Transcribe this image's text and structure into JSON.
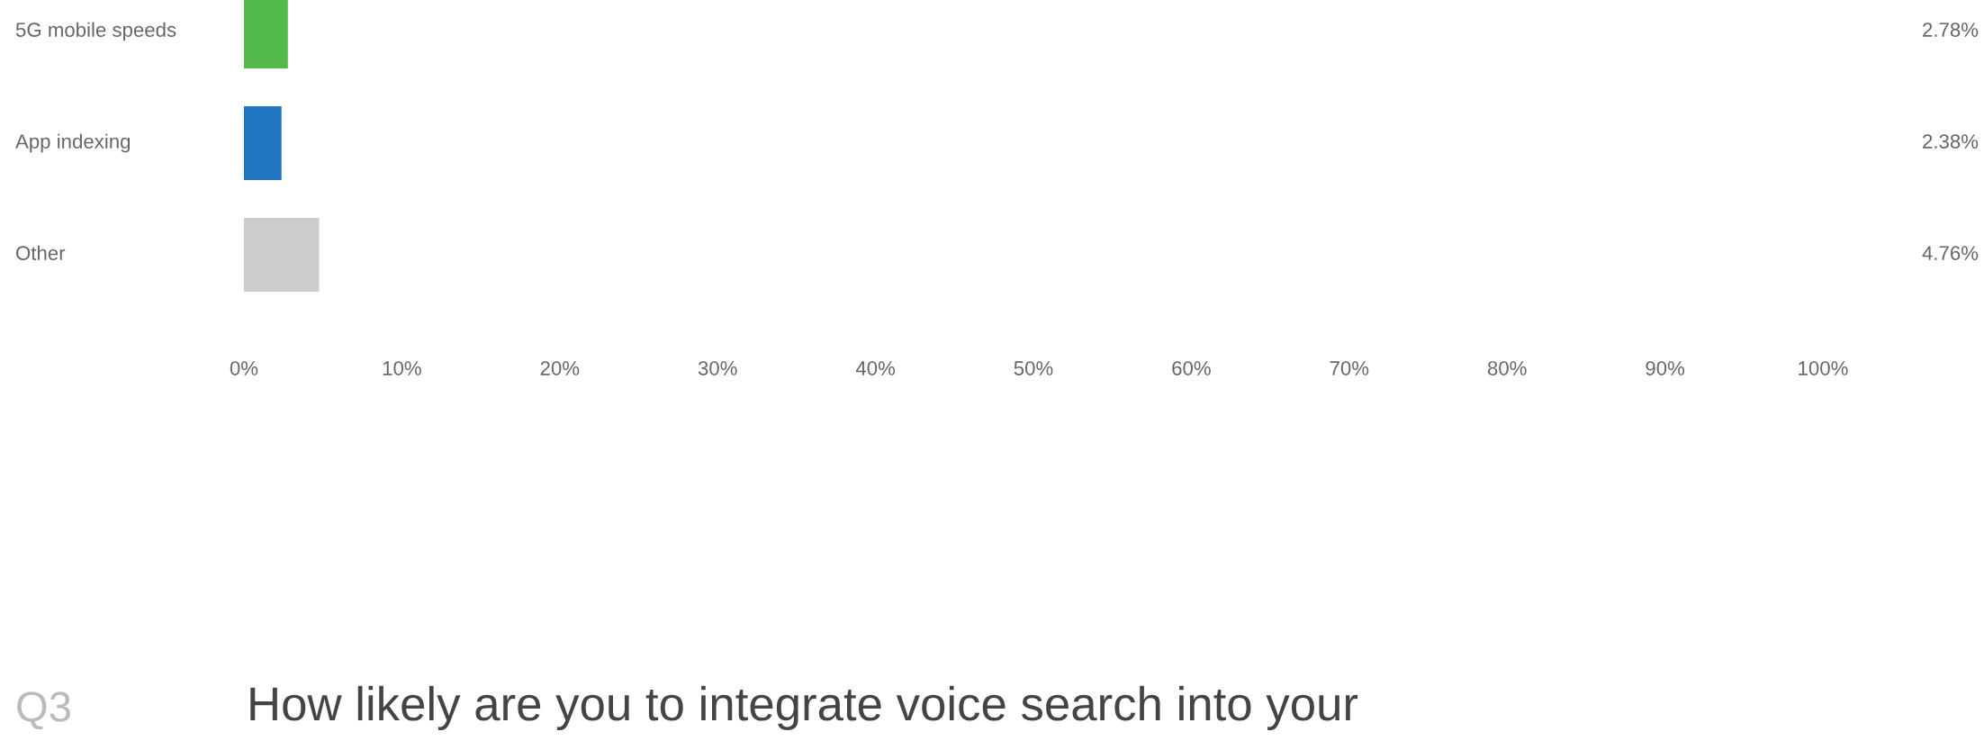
{
  "chart_data": {
    "type": "bar",
    "orientation": "horizontal",
    "categories": [
      "5G mobile speeds",
      "App indexing",
      "Other"
    ],
    "values": [
      2.78,
      2.38,
      4.76
    ],
    "colors": [
      "#52b848",
      "#2176c2",
      "#cccccc"
    ],
    "value_labels": [
      "2.78%",
      "2.38%",
      "4.76%"
    ],
    "xlim": [
      0,
      100
    ],
    "xticks": [
      {
        "value": 0,
        "label": "0%"
      },
      {
        "value": 10,
        "label": "10%"
      },
      {
        "value": 20,
        "label": "20%"
      },
      {
        "value": 30,
        "label": "30%"
      },
      {
        "value": 40,
        "label": "40%"
      },
      {
        "value": 50,
        "label": "50%"
      },
      {
        "value": 60,
        "label": "60%"
      },
      {
        "value": 70,
        "label": "70%"
      },
      {
        "value": 80,
        "label": "80%"
      },
      {
        "value": 90,
        "label": "90%"
      },
      {
        "value": 100,
        "label": "100%"
      }
    ],
    "grid": false,
    "legend": false,
    "annotations": [
      "Q3",
      "How likely are you to integrate voice search into your"
    ]
  }
}
